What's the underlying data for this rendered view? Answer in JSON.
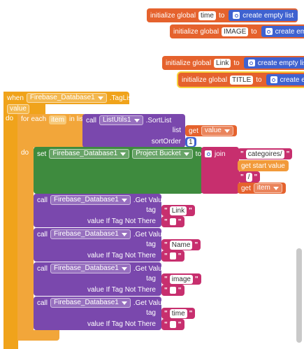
{
  "quote": "\"",
  "globals": [
    {
      "label": "initialize global",
      "name": "time",
      "to": "to",
      "value": "create empty list"
    },
    {
      "label": "initialize global",
      "name": "IMAGE",
      "to": "to",
      "value": "create empty list"
    },
    {
      "label": "initialize global",
      "name": "Link",
      "to": "to",
      "value": "create empty list"
    },
    {
      "label": "initialize global",
      "name": "TITLE",
      "to": "to",
      "value": "create empty list"
    }
  ],
  "event": {
    "when": "when",
    "component": "Firebase_Database1",
    "method": ".TagList",
    "param": "value",
    "do": "do"
  },
  "foreach": {
    "label": "for each",
    "var": "item",
    "in_list": "in list",
    "do": "do"
  },
  "sort": {
    "call": "call",
    "component": "ListUtils1",
    "method": ".SortList",
    "list_label": "list",
    "get": "get",
    "var": "value",
    "order_label": "sortOrder",
    "order": 1
  },
  "set": {
    "set": "set",
    "component": "Firebase_Database1",
    "property": "Project Bucket",
    "to": "to",
    "join": "join",
    "text1": "categoires/",
    "get1": "get start value",
    "text2": "/",
    "get2": "get",
    "var2": "item"
  },
  "getvalues": [
    {
      "call": "call",
      "component": "Firebase_Database1",
      "method": ".Get Value",
      "tag_label": "tag",
      "tag": "Link",
      "default_label": "value If Tag Not There"
    },
    {
      "call": "call",
      "component": "Firebase_Database1",
      "method": ".Get Value",
      "tag_label": "tag",
      "tag": "Name",
      "default_label": "value If Tag Not There"
    },
    {
      "call": "call",
      "component": "Firebase_Database1",
      "method": ".Get Value",
      "tag_label": "tag",
      "tag": "image",
      "default_label": "value If Tag Not There"
    },
    {
      "call": "call",
      "component": "Firebase_Database1",
      "method": ".Get Value",
      "tag_label": "tag",
      "tag": "time",
      "default_label": "value If Tag Not There"
    }
  ]
}
